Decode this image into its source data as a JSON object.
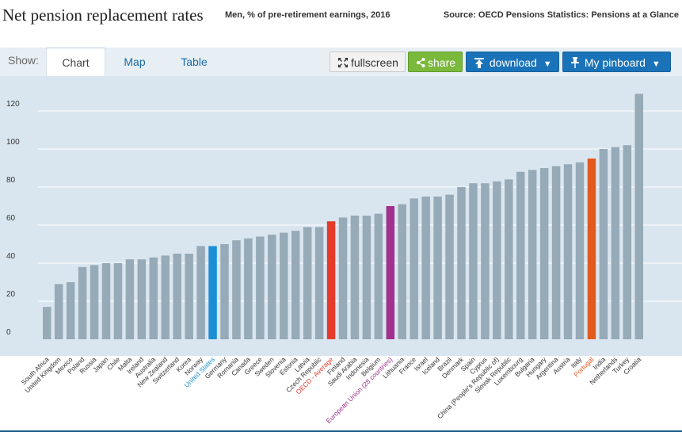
{
  "header": {
    "title": "Net pension replacement rates",
    "subtitle": "Men, % of pre-retirement earnings, 2016",
    "source": "Source: OECD Pensions Statistics: Pensions at a Glance"
  },
  "toolbar": {
    "show_label": "Show:",
    "tabs": [
      {
        "label": "Chart",
        "active": true
      },
      {
        "label": "Map",
        "active": false
      },
      {
        "label": "Table",
        "active": false
      }
    ],
    "fullscreen_label": "fullscreen",
    "share_label": "share",
    "download_label": "download",
    "pinboard_label": "My pinboard",
    "fullscreen_icon": "fullscreen-icon",
    "share_icon": "share-icon",
    "download_icon": "download-icon",
    "pin_icon": "pin-icon",
    "caret_icon": "caret-down-icon"
  },
  "colors": {
    "default_bar": "#96aab7",
    "united_states": "#1b8fd6",
    "oecd_average": "#e33b2c",
    "european_union": "#a0318e",
    "portugal": "#e35a1f",
    "plot_background": "#dae6ef",
    "gridline": "#ffffff"
  },
  "chart_data": {
    "type": "bar",
    "title": "Net pension replacement rates",
    "subtitle": "Men, % of pre-retirement earnings, 2016",
    "xlabel": "",
    "ylabel": "",
    "ylim": [
      0,
      130
    ],
    "yticks": [
      0,
      20,
      40,
      60,
      80,
      100,
      120
    ],
    "grid": true,
    "legend": "none",
    "categories": [
      "South Africa",
      "United Kingdom",
      "Mexico",
      "Poland",
      "Russia",
      "Japan",
      "Chile",
      "Malta",
      "Ireland",
      "Australia",
      "New Zealand",
      "Switzerland",
      "Korea",
      "Norway",
      "United States",
      "Germany",
      "Romania",
      "Canada",
      "Greece",
      "Sweden",
      "Slovenia",
      "Estonia",
      "Latvia",
      "Czech Republic",
      "OECD - Average",
      "Finland",
      "Saudi Arabia",
      "Indonesia",
      "Belgium",
      "European Union (28 countries)",
      "Lithuania",
      "France",
      "Israel",
      "Iceland",
      "Brazil",
      "Denmark",
      "Spain",
      "Cyprus",
      "China (People's Republic of)",
      "Slovak Republic",
      "Luxembourg",
      "Bulgaria",
      "Hungary",
      "Argentina",
      "Austria",
      "Italy",
      "Portugal",
      "India",
      "Netherlands",
      "Turkey",
      "Croatia"
    ],
    "values": [
      17,
      29,
      30,
      38,
      39,
      40,
      40,
      42,
      42,
      43,
      44,
      45,
      45,
      49,
      49,
      50,
      52,
      53,
      54,
      55,
      56,
      57,
      59,
      59,
      62,
      64,
      65,
      65,
      66,
      70,
      71,
      74,
      75,
      75,
      76,
      80,
      82,
      82,
      83,
      84,
      88,
      89,
      90,
      91,
      92,
      93,
      95,
      100,
      101,
      102,
      129
    ],
    "highlight": {
      "United States": "united_states",
      "OECD - Average": "oecd_average",
      "European Union (28 countries)": "european_union",
      "Portugal": "portugal"
    }
  }
}
